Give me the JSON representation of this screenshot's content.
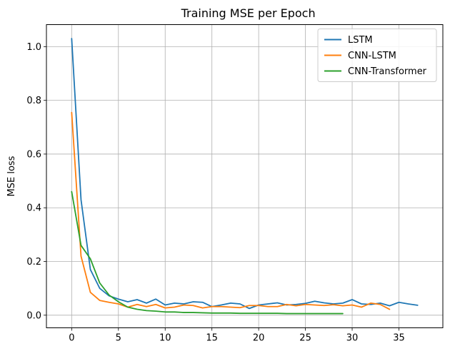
{
  "chart_data": {
    "type": "line",
    "title": "Training MSE per Epoch",
    "xlabel": "",
    "ylabel": "MSE loss",
    "xlim": [
      -2.7,
      39.7
    ],
    "ylim": [
      -0.047,
      1.082
    ],
    "xticks": [
      0,
      5,
      10,
      15,
      20,
      25,
      30,
      35
    ],
    "yticks": [
      0.0,
      0.2,
      0.4,
      0.6,
      0.8,
      1.0
    ],
    "ytick_labels": [
      "0.0",
      "0.2",
      "0.4",
      "0.6",
      "0.8",
      "1.0"
    ],
    "grid": true,
    "legend_position": "top-right",
    "series": [
      {
        "name": "LSTM",
        "color": "#1f77b4",
        "x": [
          0,
          1,
          2,
          3,
          4,
          5,
          6,
          7,
          8,
          9,
          10,
          11,
          12,
          13,
          14,
          15,
          16,
          17,
          18,
          19,
          20,
          21,
          22,
          23,
          24,
          25,
          26,
          27,
          28,
          29,
          30,
          31,
          32,
          33,
          34,
          35,
          36,
          37
        ],
        "values": [
          1.03,
          0.43,
          0.17,
          0.1,
          0.072,
          0.06,
          0.05,
          0.058,
          0.045,
          0.06,
          0.038,
          0.045,
          0.042,
          0.05,
          0.048,
          0.032,
          0.038,
          0.045,
          0.042,
          0.025,
          0.038,
          0.042,
          0.046,
          0.038,
          0.04,
          0.044,
          0.052,
          0.046,
          0.042,
          0.045,
          0.058,
          0.042,
          0.04,
          0.045,
          0.035,
          0.048,
          0.042,
          0.037
        ]
      },
      {
        "name": "CNN-LSTM",
        "color": "#ff7f0e",
        "x": [
          0,
          1,
          2,
          3,
          4,
          5,
          6,
          7,
          8,
          9,
          10,
          11,
          12,
          13,
          14,
          15,
          16,
          17,
          18,
          19,
          20,
          21,
          22,
          23,
          24,
          25,
          26,
          27,
          28,
          29,
          30,
          31,
          32,
          33,
          34
        ],
        "values": [
          0.755,
          0.22,
          0.085,
          0.055,
          0.048,
          0.042,
          0.03,
          0.04,
          0.032,
          0.04,
          0.027,
          0.03,
          0.038,
          0.036,
          0.027,
          0.032,
          0.032,
          0.03,
          0.028,
          0.036,
          0.036,
          0.032,
          0.032,
          0.04,
          0.035,
          0.04,
          0.038,
          0.036,
          0.039,
          0.035,
          0.038,
          0.03,
          0.045,
          0.04,
          0.022
        ]
      },
      {
        "name": "CNN-Transformer",
        "color": "#2ca02c",
        "x": [
          0,
          1,
          2,
          3,
          4,
          5,
          6,
          7,
          8,
          9,
          10,
          11,
          12,
          13,
          14,
          15,
          16,
          17,
          18,
          19,
          20,
          21,
          22,
          23,
          24,
          25,
          26,
          27,
          28,
          29
        ],
        "values": [
          0.46,
          0.26,
          0.21,
          0.12,
          0.075,
          0.05,
          0.03,
          0.022,
          0.017,
          0.015,
          0.012,
          0.012,
          0.01,
          0.01,
          0.009,
          0.008,
          0.008,
          0.008,
          0.007,
          0.007,
          0.007,
          0.007,
          0.007,
          0.006,
          0.006,
          0.006,
          0.006,
          0.006,
          0.006,
          0.006
        ]
      }
    ]
  }
}
